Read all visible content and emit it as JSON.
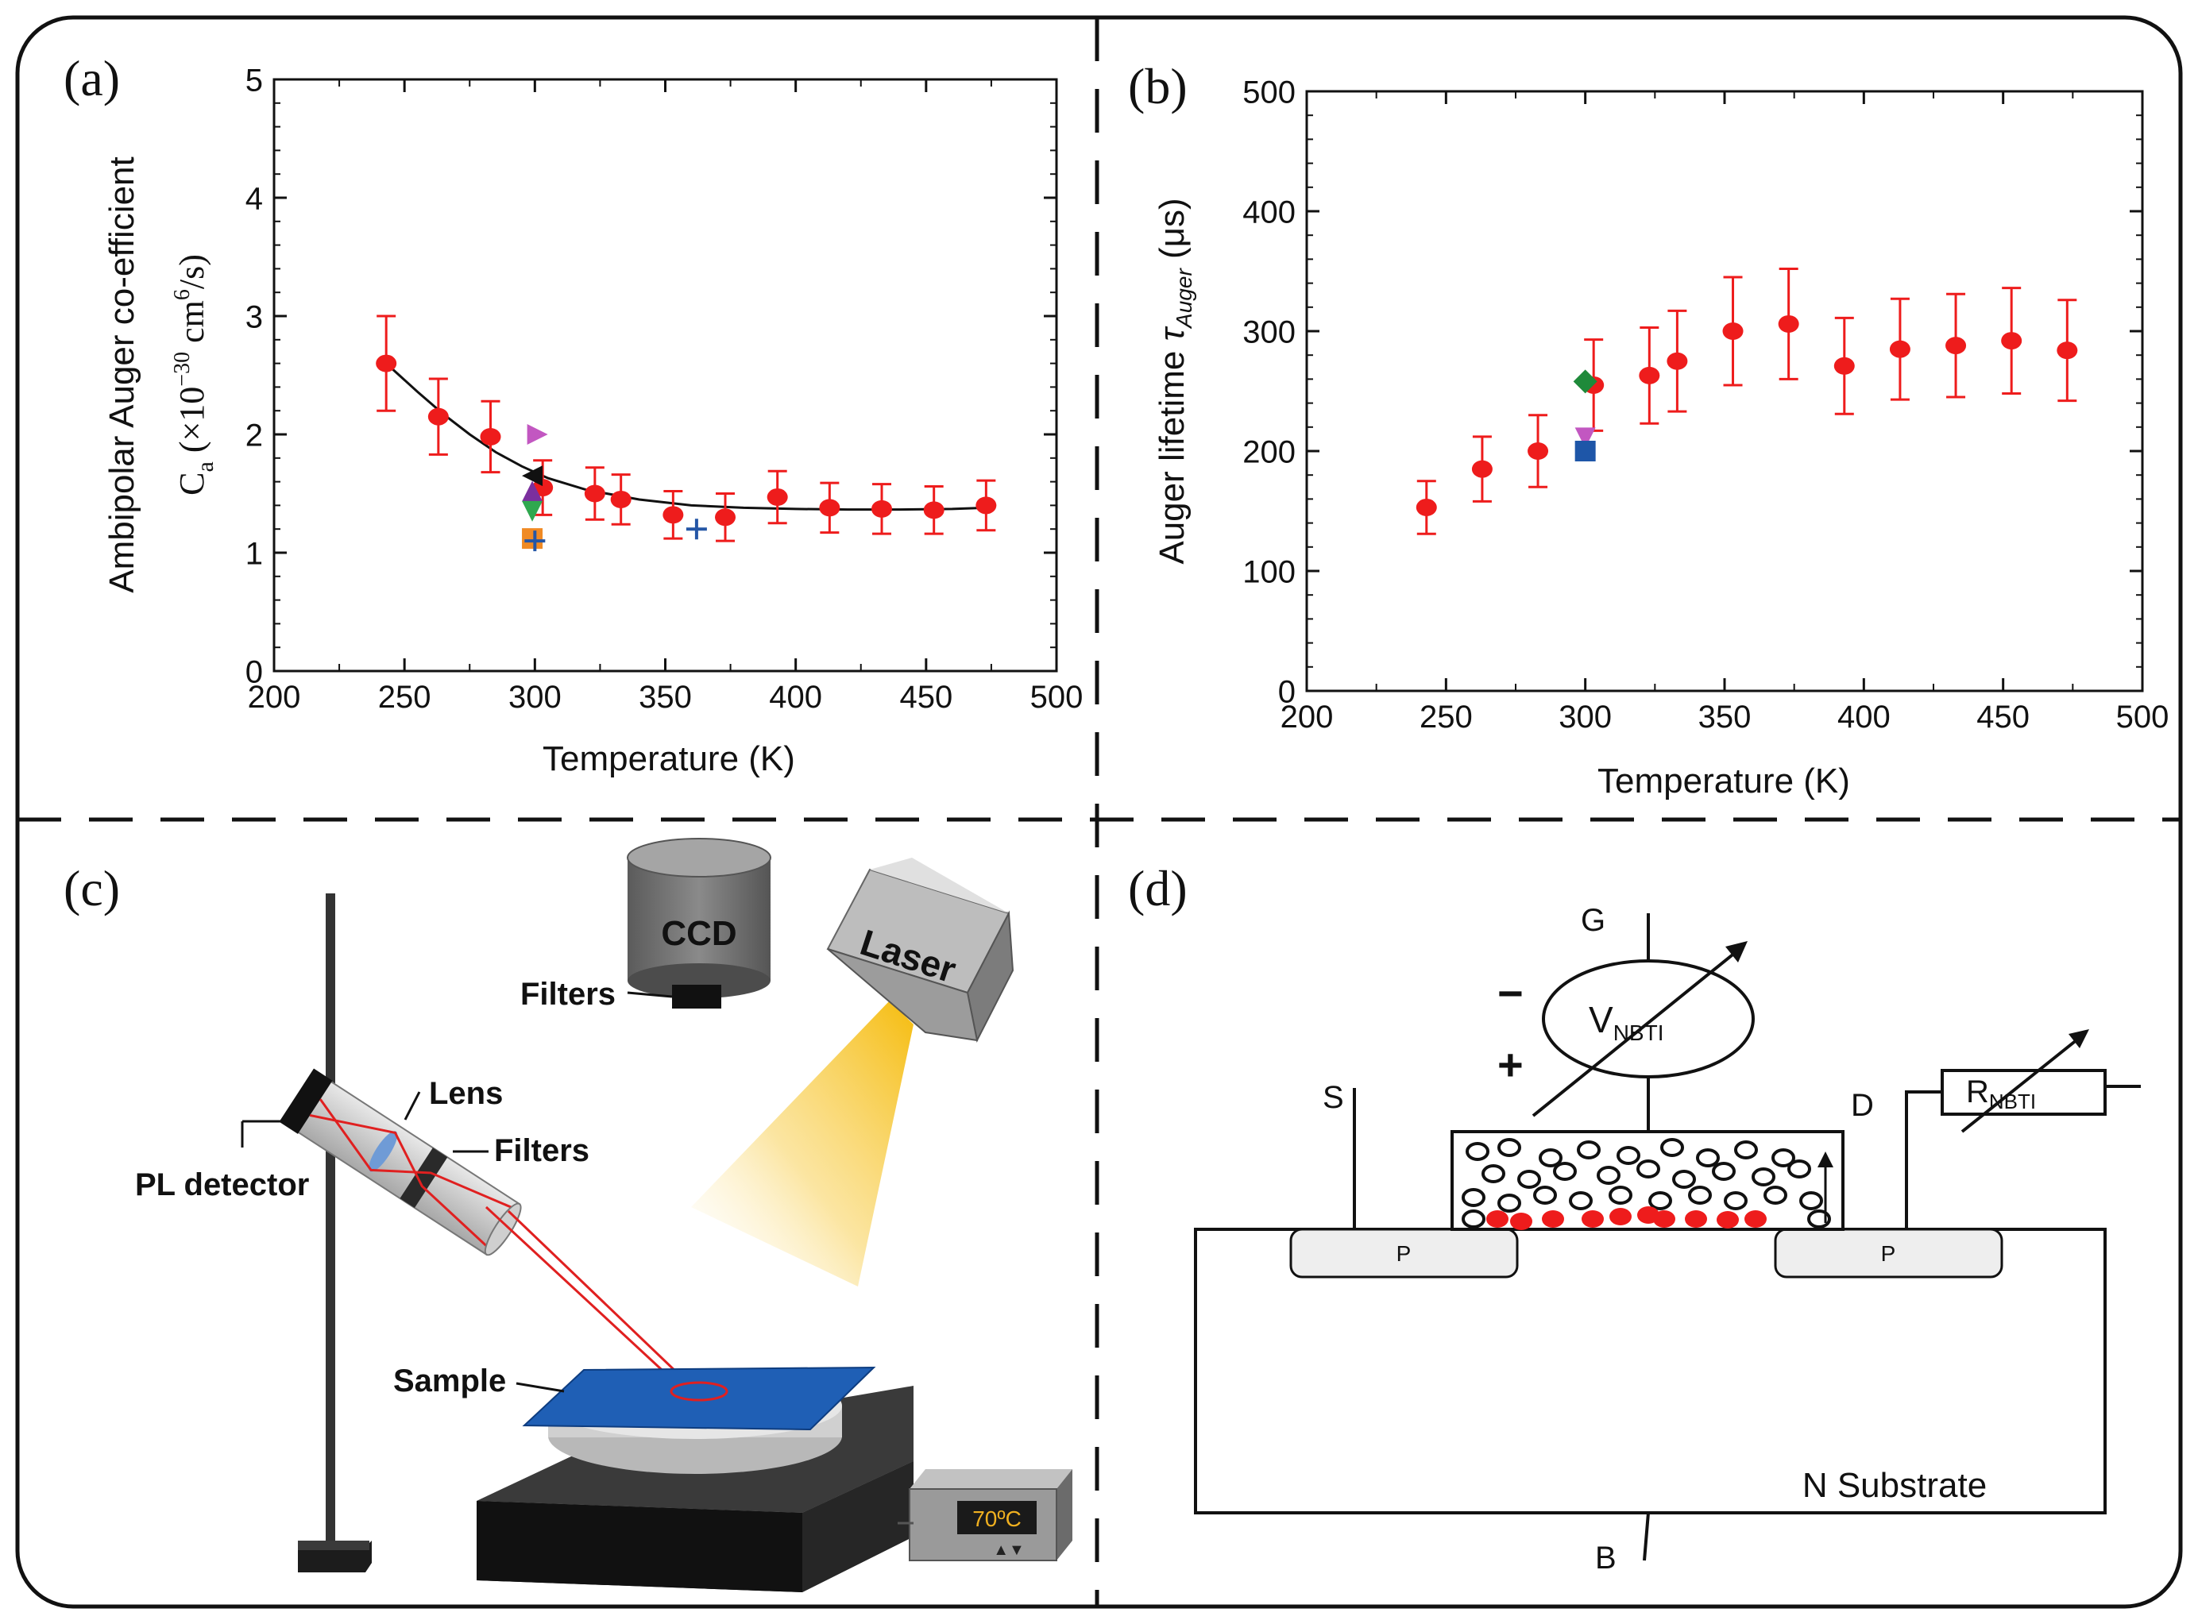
{
  "figure": {
    "panel_labels": [
      "(a)",
      "(b)",
      "(c)",
      "(d)"
    ]
  },
  "chart_data": [
    {
      "id": "a",
      "type": "scatter",
      "xlabel": "Temperature (K)",
      "ylabel_line1": "Ambipolar Auger co-efficient",
      "ylabel_line2": {
        "prefix": "C",
        "subscript": "a",
        "middle": " (×10",
        "exponent": "−30",
        "unit": " cm",
        "unit_exponent": "6",
        "suffix": "/s)"
      },
      "xlim": [
        200,
        500
      ],
      "ylim": [
        0,
        5
      ],
      "xticks": [
        200,
        250,
        300,
        350,
        400,
        450,
        500
      ],
      "yticks": [
        0,
        1,
        2,
        3,
        4,
        5
      ],
      "series": [
        {
          "name": "measured",
          "marker": "circle",
          "color": "#ee1c1c",
          "x": [
            243,
            263,
            283,
            303,
            323,
            333,
            353,
            373,
            393,
            413,
            433,
            453,
            473
          ],
          "y": [
            2.6,
            2.15,
            1.98,
            1.55,
            1.5,
            1.45,
            1.32,
            1.3,
            1.47,
            1.38,
            1.37,
            1.36,
            1.4
          ],
          "yerr": [
            0.4,
            0.32,
            0.3,
            0.23,
            0.22,
            0.21,
            0.2,
            0.2,
            0.22,
            0.21,
            0.21,
            0.2,
            0.21
          ]
        },
        {
          "name": "fit",
          "marker": "line",
          "color": "#111111",
          "x": [
            243,
            255,
            265,
            275,
            285,
            295,
            305,
            320,
            340,
            360,
            380,
            400,
            420,
            440,
            460,
            473
          ],
          "y": [
            2.6,
            2.36,
            2.17,
            2.0,
            1.85,
            1.73,
            1.63,
            1.53,
            1.45,
            1.4,
            1.38,
            1.37,
            1.365,
            1.365,
            1.37,
            1.38
          ]
        }
      ],
      "reference_points": [
        {
          "marker": "triangle-right",
          "color": "#c257c1",
          "x": 301,
          "y": 2.0
        },
        {
          "marker": "triangle-left",
          "color": "#111111",
          "x": 299,
          "y": 1.65
        },
        {
          "marker": "triangle-up",
          "color": "#7b2f9e",
          "x": 299,
          "y": 1.52
        },
        {
          "marker": "triangle-down",
          "color": "#2fa84f",
          "x": 299,
          "y": 1.35
        },
        {
          "marker": "square",
          "color": "#f08a24",
          "x": 299,
          "y": 1.12
        },
        {
          "marker": "plus",
          "color": "#2456a6",
          "x": 300,
          "y": 1.1
        },
        {
          "marker": "plus",
          "color": "#2456a6",
          "x": 362,
          "y": 1.2
        }
      ]
    },
    {
      "id": "b",
      "type": "scatter",
      "xlabel": "Temperature (K)",
      "ylabel": {
        "prefix": "Auger lifetime ",
        "symbol": "τ",
        "subscript": "Auger",
        "suffix": " (μs)"
      },
      "xlim": [
        200,
        500
      ],
      "ylim": [
        0,
        500
      ],
      "xticks": [
        200,
        250,
        300,
        350,
        400,
        450,
        500
      ],
      "yticks": [
        0,
        100,
        200,
        300,
        400,
        500
      ],
      "series": [
        {
          "name": "measured",
          "marker": "circle",
          "color": "#ee1c1c",
          "x": [
            243,
            263,
            283,
            303,
            323,
            333,
            353,
            373,
            393,
            413,
            433,
            453,
            473
          ],
          "y": [
            153,
            185,
            200,
            255,
            263,
            275,
            300,
            306,
            271,
            285,
            288,
            292,
            284
          ],
          "yerr": [
            22,
            27,
            30,
            38,
            40,
            42,
            45,
            46,
            40,
            42,
            43,
            44,
            42
          ]
        }
      ],
      "reference_points": [
        {
          "marker": "diamond",
          "color": "#1f8a3a",
          "x": 300,
          "y": 258
        },
        {
          "marker": "triangle-down",
          "color": "#c257c1",
          "x": 300,
          "y": 211
        },
        {
          "marker": "square",
          "color": "#1e56a8",
          "x": 300,
          "y": 200
        }
      ]
    }
  ],
  "panel_c": {
    "labels": {
      "ccd": "CCD",
      "filters_top": "Filters",
      "laser": "Laser",
      "lens": "Lens",
      "filters": "Filters",
      "pl_detector": "PL detector",
      "sample": "Sample",
      "temperature_display": "70ºC",
      "controller_buttons": "▲▼"
    },
    "colors": {
      "sample": "#1f5fb5",
      "beam": "#e02020",
      "laser_glow": "#f5b800"
    }
  },
  "panel_d": {
    "labels": {
      "gate": "G",
      "source": "S",
      "drain": "D",
      "body": "B",
      "minus": "−",
      "plus": "+",
      "v_main": "V",
      "v_sub": "NBTI",
      "r_main": "R",
      "r_sub": "NBTI",
      "p_left": "P",
      "p_right": "P",
      "substrate": "N Substrate"
    },
    "colors": {
      "trapped_charge": "#ee1c1c",
      "well": "#eeeeee"
    }
  }
}
